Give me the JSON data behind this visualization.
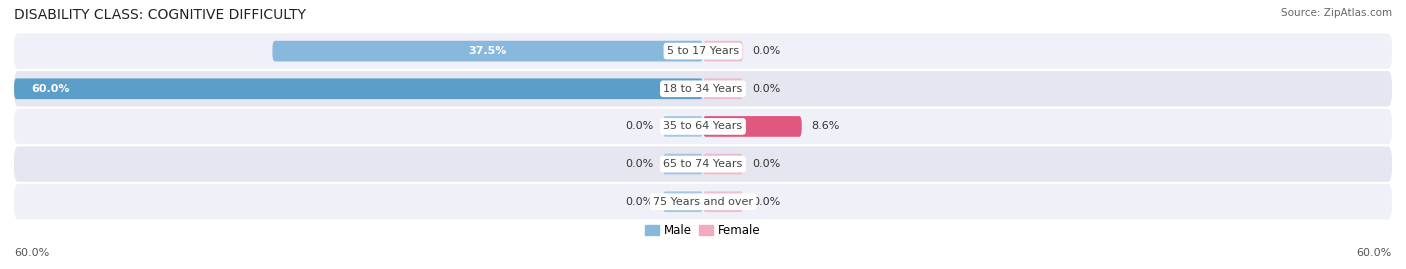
{
  "title": "DISABILITY CLASS: COGNITIVE DIFFICULTY",
  "source": "Source: ZipAtlas.com",
  "categories": [
    "5 to 17 Years",
    "18 to 34 Years",
    "35 to 64 Years",
    "65 to 74 Years",
    "75 Years and over"
  ],
  "male_values": [
    37.5,
    60.0,
    0.0,
    0.0,
    0.0
  ],
  "female_values": [
    0.0,
    0.0,
    8.6,
    0.0,
    0.0
  ],
  "max_val": 60.0,
  "male_color_light": "#88b8dc",
  "male_color_strong": "#5b9ec9",
  "female_color_light": "#f2aabf",
  "female_color_strong": "#e05880",
  "row_bg_light": "#f0f0f8",
  "row_bg_dark": "#e6e6f0",
  "label_color": "#444444",
  "value_color_dark": "#333333",
  "title_fontsize": 10,
  "label_fontsize": 8,
  "category_fontsize": 8,
  "legend_fontsize": 8.5,
  "axis_tick_fontsize": 8,
  "figure_bg": "#ffffff",
  "stub_size": 3.5
}
